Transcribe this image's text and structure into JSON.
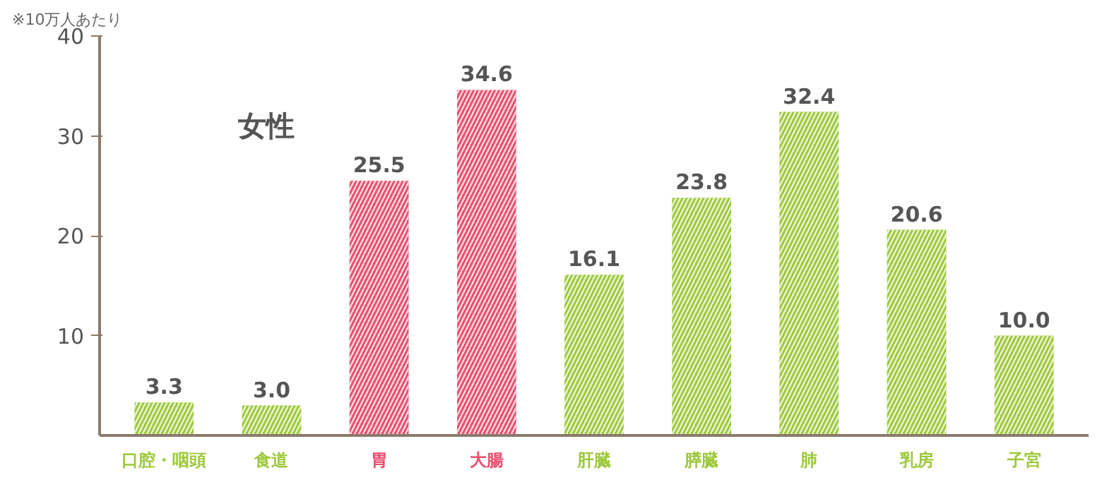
{
  "chart_data": {
    "type": "bar",
    "title": "女性",
    "annotations": [
      "※10万人あたり"
    ],
    "categories": [
      "口腔・咽頭",
      "食道",
      "胃",
      "大腸",
      "肝臓",
      "膵臓",
      "肺",
      "乳房",
      "子宮"
    ],
    "values": [
      3.3,
      3.0,
      25.5,
      34.6,
      16.1,
      23.8,
      32.4,
      20.6,
      10.0
    ],
    "colors": [
      "#9dc93c",
      "#9dc93c",
      "#e8506e",
      "#e8506e",
      "#9dc93c",
      "#9dc93c",
      "#9dc93c",
      "#9dc93c",
      "#9dc93c"
    ],
    "value_labels": [
      "3.3",
      "3.0",
      "25.5",
      "34.6",
      "16.1",
      "23.8",
      "32.4",
      "20.6",
      "10.0"
    ],
    "ylim": [
      0,
      40
    ],
    "yticks": [
      10,
      20,
      30,
      40
    ],
    "grid": false
  }
}
